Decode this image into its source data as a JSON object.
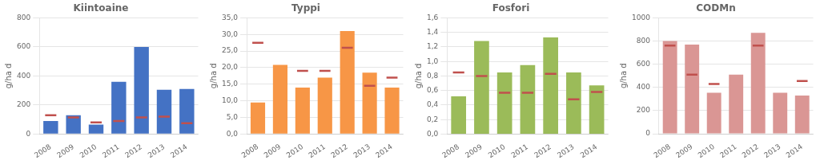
{
  "chart_data": [
    {
      "type": "bar",
      "title": "Kiintoaine",
      "ylabel": "g/ha d",
      "categories": [
        "2008",
        "2009",
        "2010",
        "2011",
        "2012",
        "2013",
        "2014"
      ],
      "series": [
        {
          "type": "bar",
          "color": "#4472C4",
          "values": [
            90,
            130,
            65,
            360,
            600,
            305,
            310
          ]
        },
        {
          "type": "line",
          "marker": "line",
          "line_style": "none",
          "color": "#C0504D",
          "values": [
            130,
            115,
            80,
            90,
            115,
            120,
            75
          ]
        }
      ],
      "ylim": [
        0,
        800
      ],
      "yticks": [
        0,
        200,
        400,
        600,
        800
      ],
      "grid": true
    },
    {
      "type": "bar",
      "title": "Typpi",
      "ylabel": "g/ha d",
      "categories": [
        "2008",
        "2009",
        "2010",
        "2011",
        "2012",
        "2013",
        "2014"
      ],
      "series": [
        {
          "type": "bar",
          "color": "#F79646",
          "values": [
            9.5,
            20.8,
            14.0,
            17.0,
            31.0,
            18.5,
            14.0
          ]
        },
        {
          "type": "line",
          "marker": "line",
          "line_style": "none",
          "color": "#C0504D",
          "values": [
            27.5,
            null,
            19.0,
            19.0,
            26.0,
            14.5,
            17.0
          ]
        }
      ],
      "ylim": [
        0,
        35
      ],
      "yticks": [
        {
          "value": 0,
          "label": "0,0"
        },
        {
          "value": 5.0,
          "label": "5,0"
        },
        {
          "value": 10.0,
          "label": "10,0"
        },
        {
          "value": 15.0,
          "label": "15,0"
        },
        {
          "value": 20.0,
          "label": "20,0"
        },
        {
          "value": 25.0,
          "label": "25,0"
        },
        {
          "value": 30.0,
          "label": "30,0"
        },
        {
          "value": 35.0,
          "label": "35,0"
        }
      ],
      "grid": true
    },
    {
      "type": "bar",
      "title": "Fosfori",
      "ylabel": "g/ha d",
      "categories": [
        "2008",
        "2009",
        "2010",
        "2011",
        "2012",
        "2013",
        "2014"
      ],
      "series": [
        {
          "type": "bar",
          "color": "#9BBB59",
          "values": [
            0.52,
            1.28,
            0.85,
            0.95,
            1.33,
            0.85,
            0.67
          ]
        },
        {
          "type": "line",
          "marker": "line",
          "line_style": "none",
          "color": "#C0504D",
          "values": [
            0.85,
            0.8,
            0.57,
            0.57,
            0.83,
            0.48,
            0.58
          ]
        }
      ],
      "ylim": [
        0,
        1.6
      ],
      "yticks": [
        {
          "value": 0.0,
          "label": "0,0"
        },
        {
          "value": 0.2,
          "label": "0,2"
        },
        {
          "value": 0.4,
          "label": "0,4"
        },
        {
          "value": 0.6,
          "label": "0,6"
        },
        {
          "value": 0.8,
          "label": "0,8"
        },
        {
          "value": 1.0,
          "label": "1,0"
        },
        {
          "value": 1.2,
          "label": "1,2"
        },
        {
          "value": 1.4,
          "label": "1,4"
        },
        {
          "value": 1.6,
          "label": "1,6"
        }
      ],
      "grid": true
    },
    {
      "type": "bar",
      "title": "CODMn",
      "ylabel": "g/ha d",
      "categories": [
        "2008",
        "2009",
        "2010",
        "2011",
        "2012",
        "2013",
        "2014"
      ],
      "series": [
        {
          "type": "bar",
          "color": "#DA9694",
          "values": [
            800,
            770,
            355,
            510,
            870,
            355,
            330
          ]
        },
        {
          "type": "line",
          "marker": "line",
          "line_style": "none",
          "color": "#C0504D",
          "values": [
            760,
            510,
            430,
            null,
            760,
            null,
            455
          ]
        }
      ],
      "ylim": [
        0,
        1000
      ],
      "yticks": [
        0,
        200,
        400,
        600,
        800,
        1000
      ],
      "grid": true
    }
  ]
}
